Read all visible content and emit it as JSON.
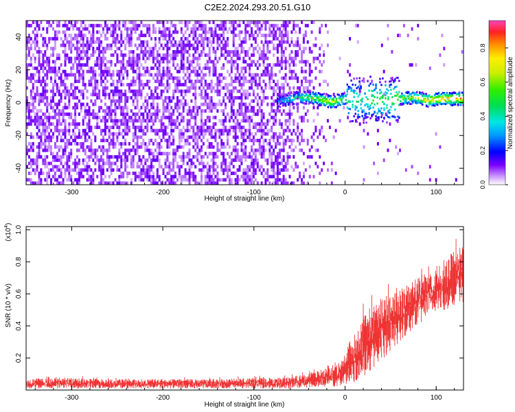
{
  "title": "C2E2.2024.293.20.51.G10",
  "chart_data": [
    {
      "type": "heatmap",
      "xlabel": "Height of straight line (km)",
      "ylabel": "Frequency (Hz)",
      "xlim": [
        -350,
        130
      ],
      "ylim": [
        -50,
        50
      ],
      "xticks": [
        -300,
        -200,
        -100,
        0,
        100
      ],
      "yticks": [
        -40,
        -20,
        0,
        20,
        40
      ],
      "colorbar": {
        "label": "Normalized spectral amplitude",
        "range": [
          0,
          0.96
        ],
        "ticks": [
          0.0,
          0.2,
          0.4,
          0.6,
          0.8
        ]
      },
      "signal_track": {
        "x": [
          -75,
          -60,
          -45,
          -30,
          -15,
          0,
          15,
          30,
          45,
          60,
          75,
          90,
          105,
          130
        ],
        "freq": [
          0,
          2,
          3,
          2,
          0,
          2,
          1,
          2,
          1,
          2,
          3,
          1,
          2,
          2
        ],
        "amplitude": [
          0.25,
          0.4,
          0.55,
          0.6,
          0.75,
          0.5,
          0.45,
          0.5,
          0.55,
          0.6,
          0.65,
          0.8,
          0.85,
          0.85
        ]
      }
    },
    {
      "type": "line",
      "xlabel": "Height of straight line (km)",
      "ylabel": "SNR (10 * v/v)",
      "yscale_label": "(x10",
      "yscale_exp": "4",
      "xlim": [
        -350,
        130
      ],
      "ylim": [
        0,
        1.02
      ],
      "xticks": [
        -300,
        -200,
        -100,
        0,
        100
      ],
      "yticks": [
        0.2,
        0.4,
        0.6,
        0.8,
        1.0
      ],
      "series": [
        {
          "color": "#ee3333",
          "x": [
            -350,
            -300,
            -250,
            -200,
            -150,
            -100,
            -75,
            -50,
            -25,
            -10,
            0,
            10,
            20,
            30,
            40,
            50,
            60,
            70,
            80,
            90,
            100,
            110,
            120,
            130
          ],
          "low": [
            0.01,
            0.01,
            0.01,
            0.01,
            0.01,
            0.01,
            0.01,
            0.01,
            0.02,
            0.02,
            0.03,
            0.05,
            0.08,
            0.12,
            0.18,
            0.24,
            0.3,
            0.36,
            0.4,
            0.45,
            0.48,
            0.5,
            0.52,
            0.55
          ],
          "high": [
            0.08,
            0.09,
            0.08,
            0.08,
            0.08,
            0.09,
            0.09,
            0.11,
            0.14,
            0.18,
            0.25,
            0.4,
            0.55,
            0.62,
            0.66,
            0.68,
            0.7,
            0.74,
            0.76,
            0.8,
            0.84,
            0.88,
            0.95,
            0.98
          ]
        }
      ]
    }
  ]
}
